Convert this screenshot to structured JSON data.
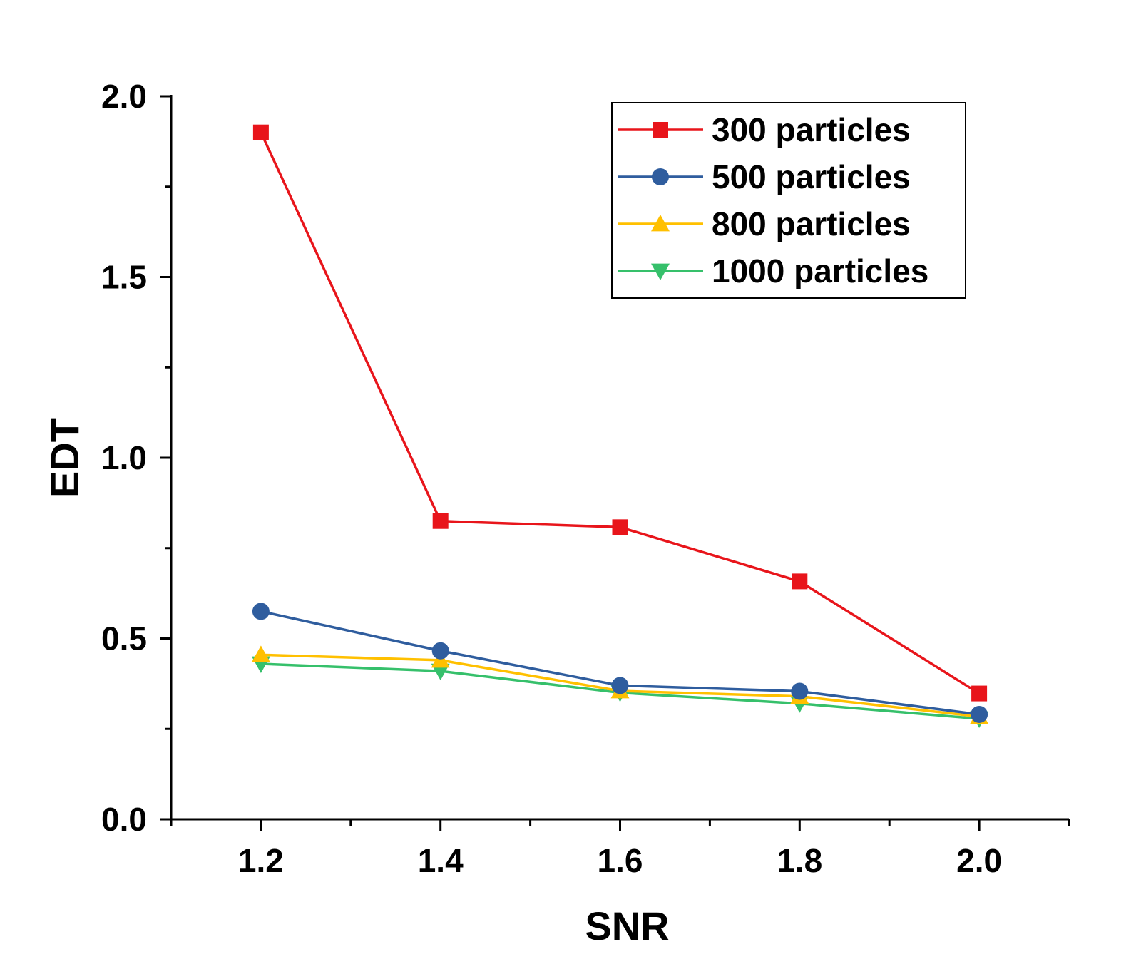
{
  "chart_data": {
    "type": "line",
    "title": "",
    "xlabel": "SNR",
    "ylabel": "EDT",
    "x": [
      1.2,
      1.4,
      1.6,
      1.8,
      2.0
    ],
    "xlim": [
      1.1,
      2.1
    ],
    "ylim": [
      0.0,
      2.0
    ],
    "x_ticks": [
      "1.2",
      "1.4",
      "1.6",
      "1.8",
      "2.0"
    ],
    "y_ticks": [
      "0.0",
      "0.5",
      "1.0",
      "1.5",
      "2.0"
    ],
    "x_tick_values": [
      1.2,
      1.4,
      1.6,
      1.8,
      2.0
    ],
    "y_tick_values": [
      0.0,
      0.5,
      1.0,
      1.5,
      2.0
    ],
    "x_minor_ticks": [
      1.1,
      1.3,
      1.5,
      1.7,
      1.9,
      2.1
    ],
    "y_minor_ticks": [
      0.25,
      0.75,
      1.25,
      1.75
    ],
    "grid": false,
    "legend_position": "top-right",
    "series": [
      {
        "name": "300 particles",
        "color": "#e8151b",
        "marker": "square",
        "values": [
          1.9,
          0.825,
          0.808,
          0.658,
          0.348
        ]
      },
      {
        "name": "500 particles",
        "color": "#2f5d9e",
        "marker": "circle",
        "values": [
          0.575,
          0.466,
          0.37,
          0.354,
          0.29
        ]
      },
      {
        "name": "800 particles",
        "color": "#ffc000",
        "marker": "triangle-up",
        "values": [
          0.455,
          0.44,
          0.355,
          0.34,
          0.284
        ]
      },
      {
        "name": "1000 particles",
        "color": "#36c06b",
        "marker": "triangle-down",
        "values": [
          0.43,
          0.41,
          0.35,
          0.32,
          0.278
        ]
      }
    ]
  }
}
